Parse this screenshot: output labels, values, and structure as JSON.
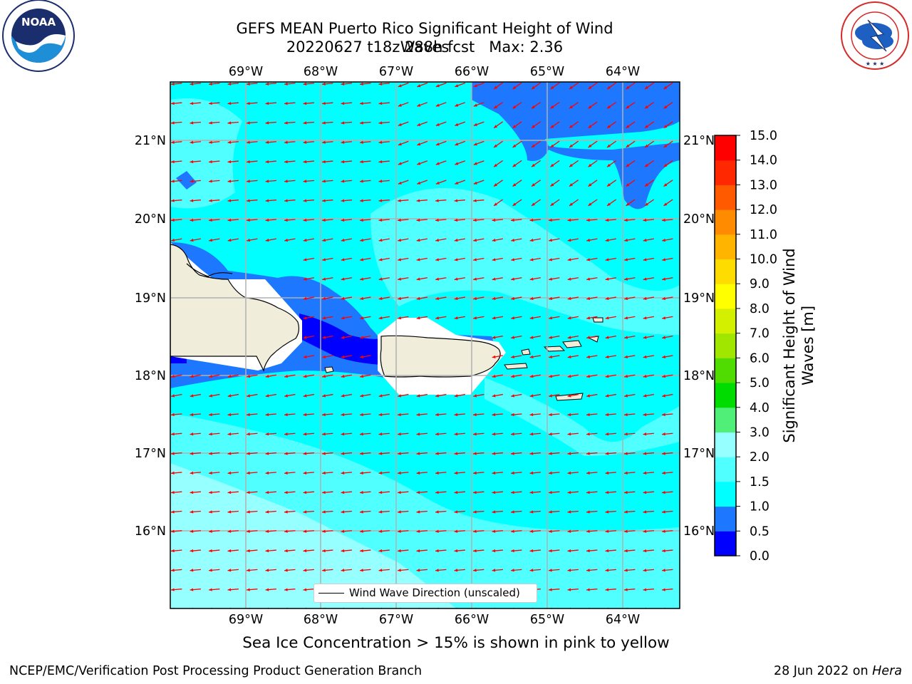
{
  "header": {
    "title_line1": "GEFS MEAN Puerto Rico Significant Height of Wind Waves",
    "title_line2": "20220627 t18z 288h fcst   Max: 2.36"
  },
  "logos": {
    "noaa": {
      "text": "NOAA",
      "ring_text": "NATIONAL OCEANIC AND ATMOSPHERIC ADMINISTRATION · U.S. DEPARTMENT OF COMMERCE"
    },
    "nws": {
      "ring_text": "NATIONAL WEATHER SERVICE"
    }
  },
  "map": {
    "lon_labels": [
      "69°W",
      "68°W",
      "67°W",
      "66°W",
      "65°W",
      "64°W"
    ],
    "lat_labels": [
      "21°N",
      "20°N",
      "19°N",
      "18°N",
      "17°N",
      "16°N"
    ],
    "vector_color": "#ff0000",
    "coast_color": "#000000",
    "land_color": "#f0eedb"
  },
  "legend": {
    "label": "Wind Wave Direction (unscaled)"
  },
  "colorbar": {
    "title": "Significant Height of Wind Waves [m]",
    "title_line1": "Significant Height of Wind",
    "title_line2": "Waves [m]",
    "ticks": [
      "0.0",
      "0.5",
      "1.0",
      "1.5",
      "2.0",
      "3.0",
      "4.0",
      "5.0",
      "6.0",
      "7.0",
      "8.0",
      "9.0",
      "10.0",
      "11.0",
      "12.0",
      "13.0",
      "14.0",
      "15.0"
    ],
    "colors": [
      "#0000ff",
      "#1e78ff",
      "#00ffff",
      "#50ffff",
      "#96ffff",
      "#50f078",
      "#00dc00",
      "#50dc00",
      "#a0e600",
      "#d2f000",
      "#ffff00",
      "#ffdc00",
      "#ffb400",
      "#ff8c00",
      "#ff5a00",
      "#ff2800",
      "#ff0000"
    ]
  },
  "caption": "Sea Ice Concentration > 15% is shown in pink to yellow",
  "footer": {
    "left": "NCEP/EMC/Verification Post Processing Product Generation Branch",
    "right_prefix": "28 Jun 2022 on ",
    "right_host": "Hera"
  }
}
